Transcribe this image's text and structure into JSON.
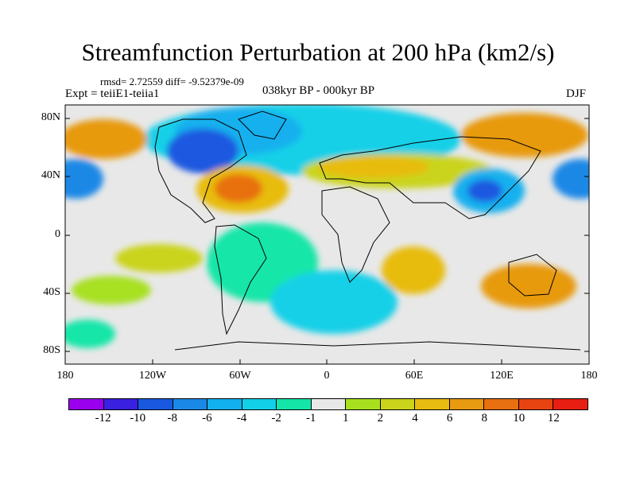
{
  "title": "Streamfunction Perturbation at 200 hPa (km2/s)",
  "stats": "rmsd= 2.72559 diff= -9.52379e-09",
  "expt": "Expt = teiiE1-teiia1",
  "period": "038kyr BP - 000kyr BP",
  "season": "DJF",
  "y_ticks": [
    "80N",
    "40N",
    "0",
    "40S",
    "80S"
  ],
  "x_ticks": [
    "180",
    "120W",
    "60W",
    "0",
    "60E",
    "120E",
    "180"
  ],
  "colorbar": {
    "labels": [
      "-12",
      "-10",
      "-8",
      "-6",
      "-4",
      "-2",
      "-1",
      "1",
      "2",
      "4",
      "6",
      "8",
      "10",
      "12"
    ],
    "colors": [
      "#9a00ee",
      "#3a20e0",
      "#1a58e0",
      "#1a88e6",
      "#12b0ee",
      "#12d0e8",
      "#14e6a8",
      "#e8e8e8",
      "#a8e020",
      "#cad41a",
      "#e8bc10",
      "#e89a10",
      "#e87010",
      "#e84412",
      "#e81e12"
    ]
  }
}
